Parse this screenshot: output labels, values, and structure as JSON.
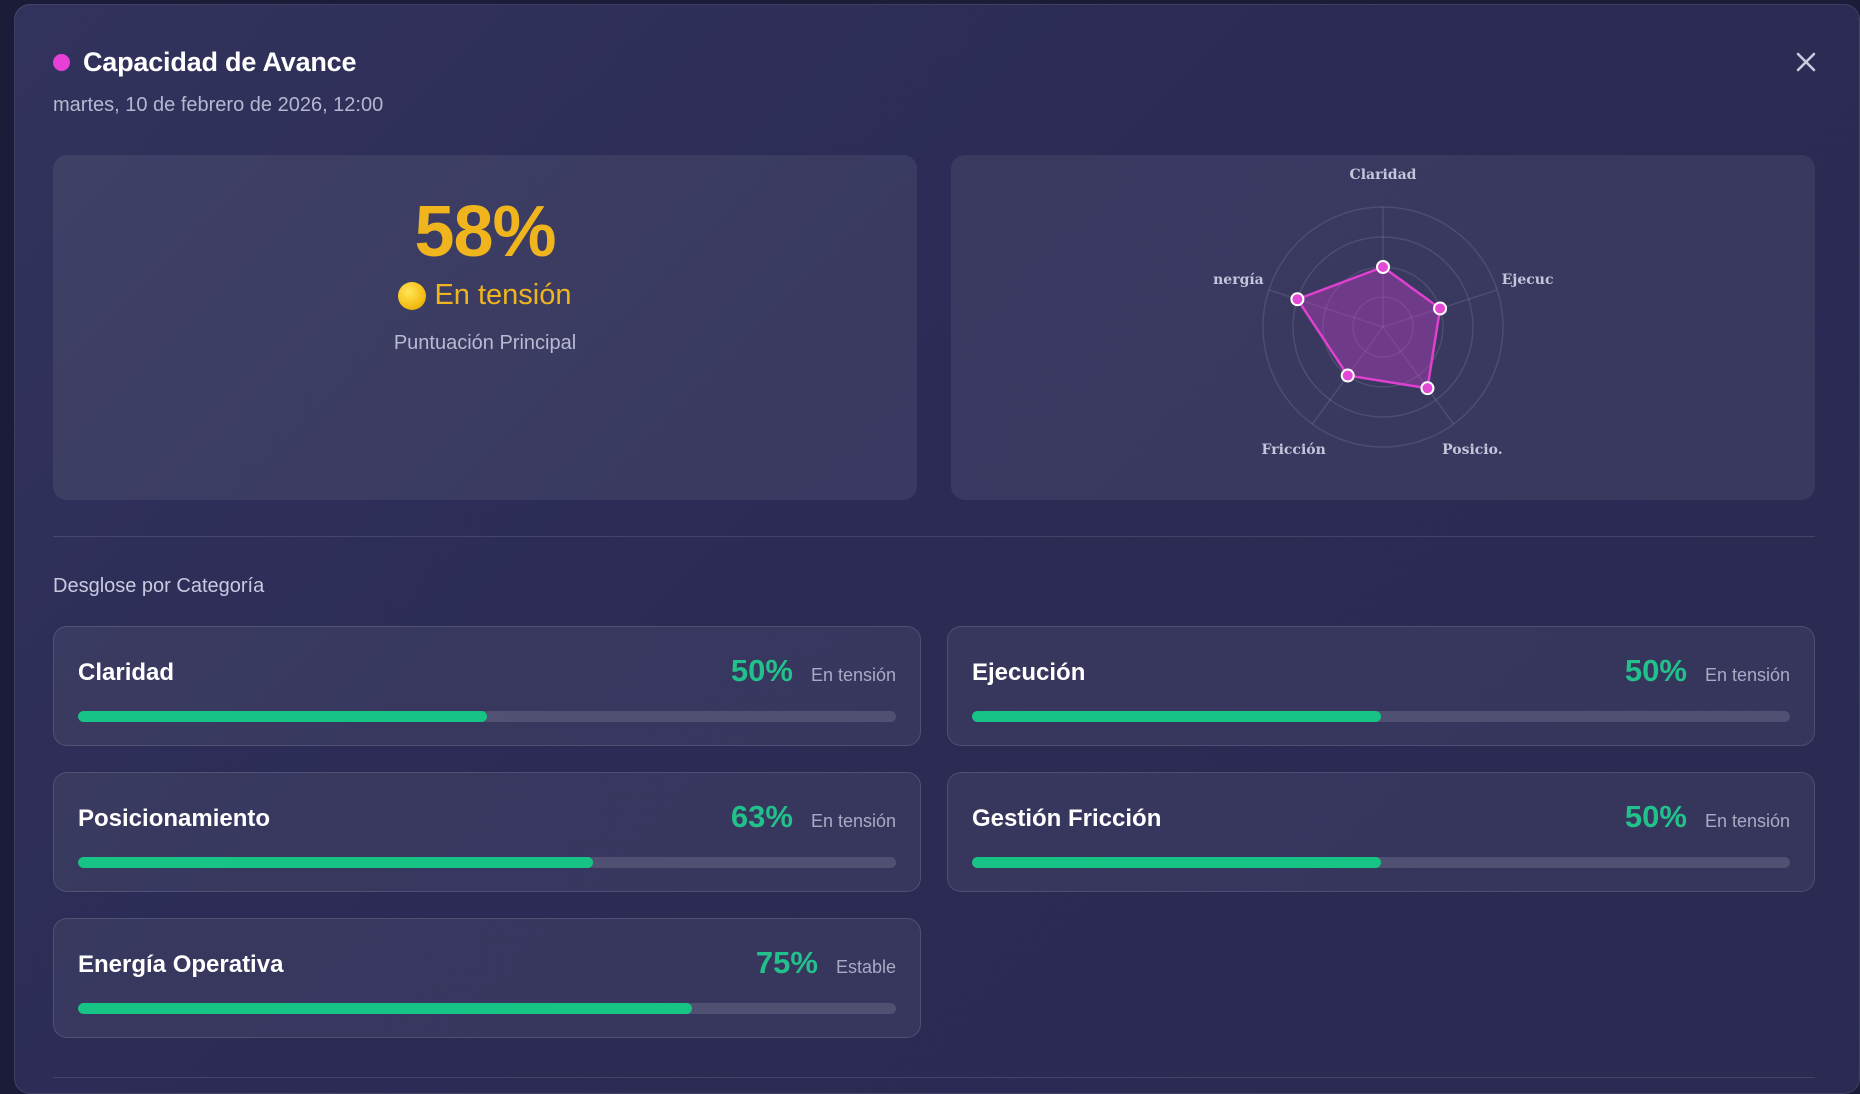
{
  "modal": {
    "title": "Capacidad de Avance",
    "subtitle": "martes, 10 de febrero de 2026, 12:00",
    "close_icon": "close-icon"
  },
  "score": {
    "value": "58%",
    "status": "En tensión",
    "status_icon": "yellow-circle-icon",
    "caption": "Puntuación Principal"
  },
  "radar": {
    "labels": [
      "Claridad",
      "Ejecuc",
      "Posicio.",
      "Fricción",
      "nergía"
    ],
    "values": [
      50,
      50,
      63,
      50,
      75
    ]
  },
  "breakdown": {
    "title": "Desglose por Categoría",
    "categories": [
      {
        "name": "Claridad",
        "percent": "50%",
        "status": "En tensión",
        "fill": 50
      },
      {
        "name": "Ejecución",
        "percent": "50%",
        "status": "En tensión",
        "fill": 50
      },
      {
        "name": "Posicionamiento",
        "percent": "63%",
        "status": "En tensión",
        "fill": 63
      },
      {
        "name": "Gestión Fricción",
        "percent": "50%",
        "status": "En tensión",
        "fill": 50
      },
      {
        "name": "Energía Operativa",
        "percent": "75%",
        "status": "Estable",
        "fill": 75
      }
    ]
  },
  "colors": {
    "accent_magenta": "#e83fd6",
    "score_yellow": "#f0b41d",
    "progress_green": "#18c386",
    "percent_green": "#22c08a"
  }
}
